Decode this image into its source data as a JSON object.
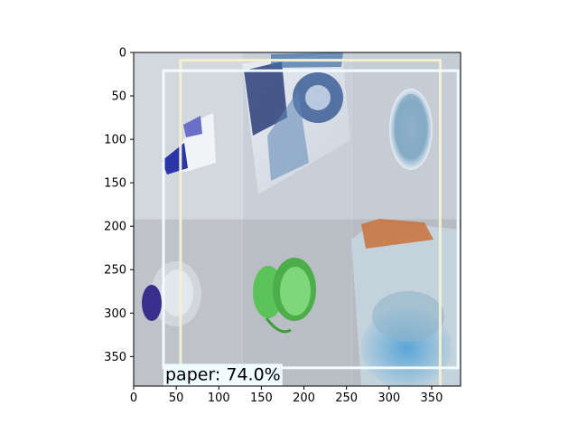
{
  "chart_data": {
    "type": "image",
    "title": "",
    "xlabel": "",
    "ylabel": "",
    "xlim": [
      0,
      384
    ],
    "ylim": [
      0,
      384
    ],
    "y_inverted": true,
    "xticks": [
      0,
      50,
      100,
      150,
      200,
      250,
      300,
      350
    ],
    "yticks": [
      0,
      50,
      100,
      150,
      200,
      250,
      300,
      350
    ],
    "mosaic_tiles": [
      {
        "col": 0,
        "row": 0,
        "subject": "crumpled blue-and-white wrapper",
        "bg": "#d3d8df"
      },
      {
        "col": 1,
        "row": 0,
        "subject": "printed magazine paper",
        "bg": "#c9cfd8"
      },
      {
        "col": 2,
        "row": 0,
        "subject": "clear plastic cup bottom",
        "bg": "#c6ccd4"
      },
      {
        "col": 0,
        "row": 1,
        "subject": "clear plastic bottle with purple cap",
        "bg": "#bfc3c9"
      },
      {
        "col": 1,
        "row": 1,
        "subject": "green bottle cap",
        "bg": "#b9bec4"
      },
      {
        "col": 2,
        "row": 1,
        "subject": "blue plastic bottle",
        "bg": "#b8bcc2"
      }
    ],
    "boxes": [
      {
        "x0": 55,
        "y0": 9,
        "x1": 360,
        "y1": 392,
        "color": "#f3f0d2"
      },
      {
        "x0": 35,
        "y0": 21,
        "x1": 381,
        "y1": 363,
        "color": "#f0fbff"
      }
    ],
    "detection": {
      "label": "paper: 74.0%",
      "class": "paper",
      "confidence": 74.0,
      "label_bg": "#f0fbff"
    }
  }
}
